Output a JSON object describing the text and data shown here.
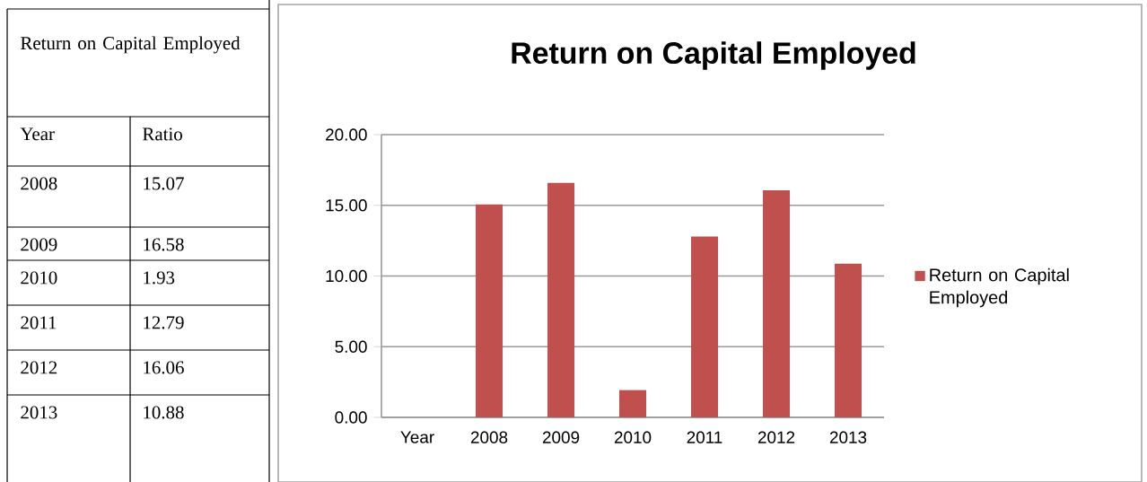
{
  "chart_data": {
    "type": "bar",
    "title": "Return on Capital Employed",
    "categories": [
      "Year",
      "2008",
      "2009",
      "2010",
      "2011",
      "2012",
      "2013"
    ],
    "series": [
      {
        "name": "Return on Capital Employed",
        "color": "#c0504d",
        "values": [
          null,
          15.07,
          16.58,
          1.93,
          12.79,
          16.06,
          10.88
        ]
      }
    ],
    "ylim": [
      0,
      20
    ],
    "yticks": [
      {
        "value": 0,
        "label": "0.00"
      },
      {
        "value": 5,
        "label": "5.00"
      },
      {
        "value": 10,
        "label": "10.00"
      },
      {
        "value": 15,
        "label": "15.00"
      },
      {
        "value": 20,
        "label": "20.00"
      }
    ],
    "grid": "y",
    "legend": "right",
    "annotations": [
      "Return on Capital Employed",
      "Year",
      "Ratio",
      "2008",
      "15.07",
      "2009",
      "16.58",
      "2010",
      "1.93",
      "2011",
      "12.79",
      "2012",
      "16.06",
      "2013",
      "10.88"
    ]
  }
}
